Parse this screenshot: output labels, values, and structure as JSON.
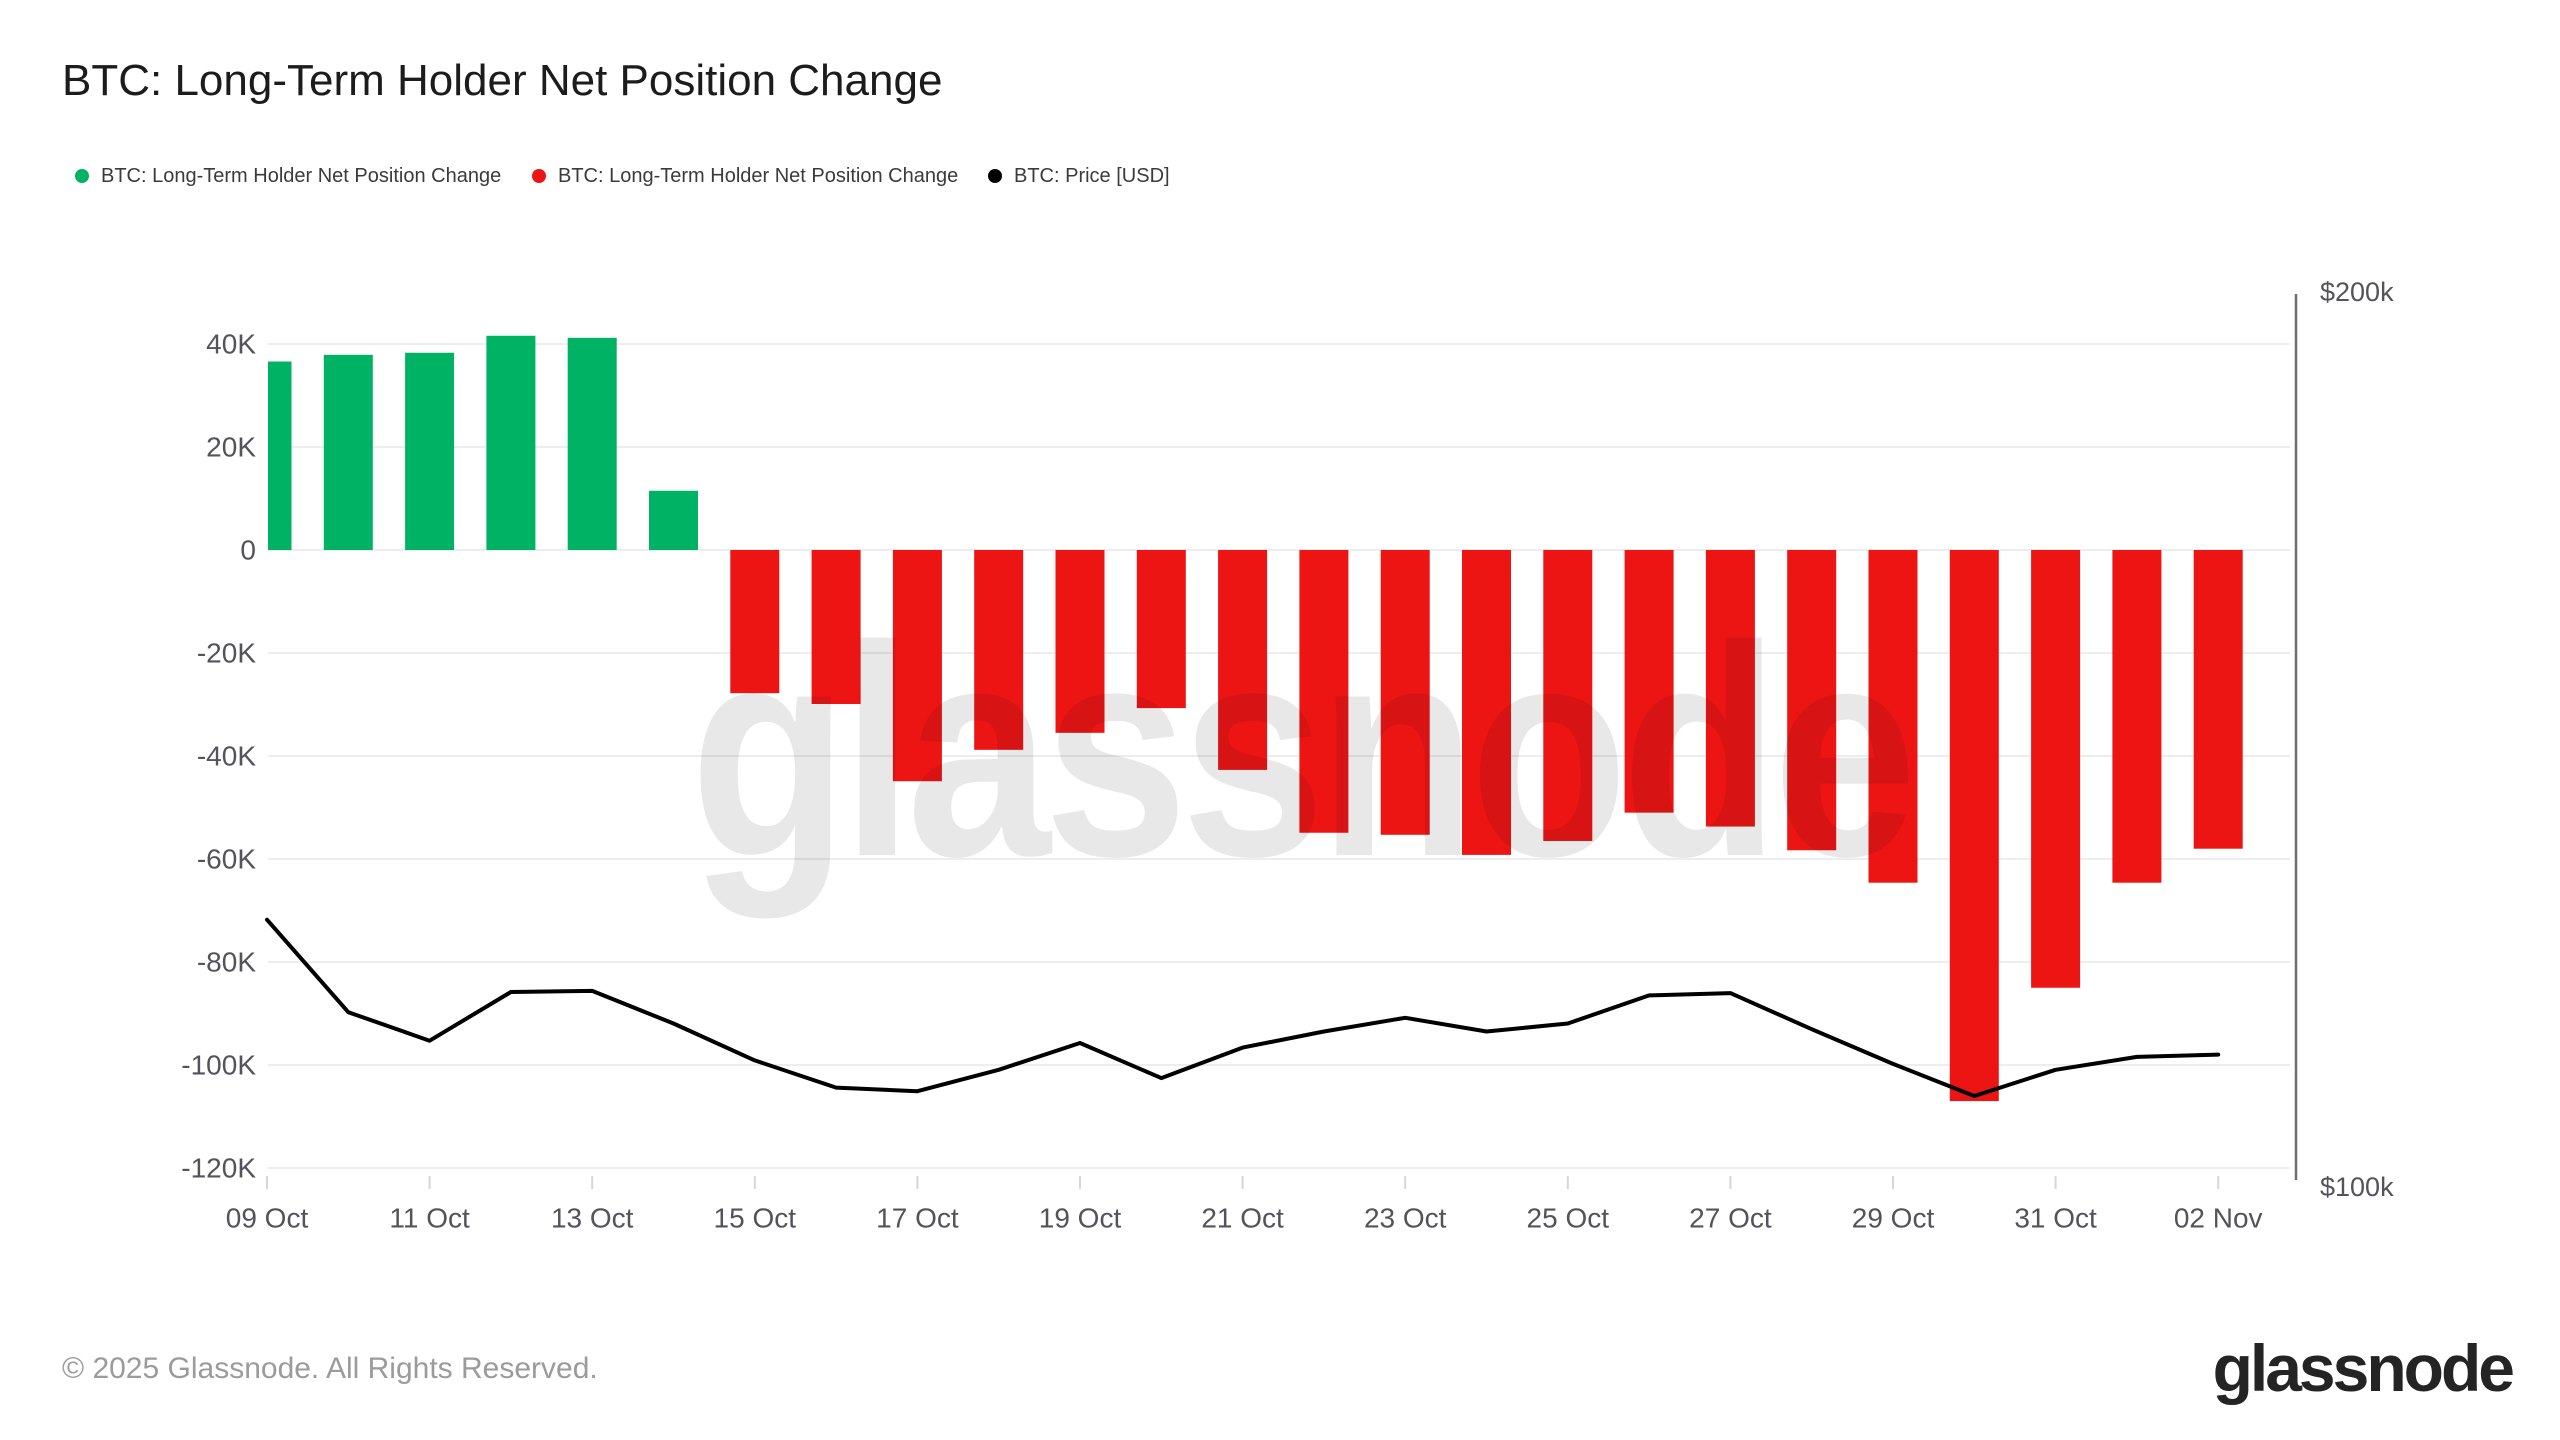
{
  "page": {
    "title": "BTC: Long-Term Holder Net Position Change",
    "footer": "© 2025 Glassnode. All Rights Reserved.",
    "brand": "glassnode",
    "watermark": "glassnode"
  },
  "legend": {
    "items": [
      {
        "label": "BTC: Long-Term Holder Net Position Change",
        "color": "#00b264"
      },
      {
        "label": "BTC: Long-Term Holder Net Position Change",
        "color": "#ed1414"
      },
      {
        "label": "BTC: Price [USD]",
        "color": "#000000"
      }
    ]
  },
  "chart_data": {
    "type": "bar+line",
    "title": "BTC: Long-Term Holder Net Position Change",
    "categories": [
      "09 Oct",
      "10 Oct",
      "11 Oct",
      "12 Oct",
      "13 Oct",
      "14 Oct",
      "15 Oct",
      "16 Oct",
      "17 Oct",
      "18 Oct",
      "19 Oct",
      "20 Oct",
      "21 Oct",
      "22 Oct",
      "23 Oct",
      "24 Oct",
      "25 Oct",
      "26 Oct",
      "27 Oct",
      "28 Oct",
      "29 Oct",
      "30 Oct",
      "31 Oct",
      "01 Nov",
      "02 Nov"
    ],
    "x_tick_labels": [
      "09 Oct",
      "11 Oct",
      "13 Oct",
      "15 Oct",
      "17 Oct",
      "19 Oct",
      "21 Oct",
      "23 Oct",
      "25 Oct",
      "27 Oct",
      "29 Oct",
      "31 Oct",
      "02 Nov"
    ],
    "series": [
      {
        "name": "BTC: Long-Term Holder Net Position Change",
        "type": "bar",
        "axis": "left",
        "positive_color": "#00b264",
        "negative_color": "#ed1414",
        "values": [
          36600,
          37900,
          38300,
          41600,
          41200,
          11500,
          -27800,
          -29900,
          -44900,
          -38800,
          -35500,
          -30700,
          -42700,
          -54900,
          -55300,
          -59200,
          -56500,
          -51000,
          -53700,
          -58300,
          -64600,
          -107000,
          -85000,
          -64600,
          -58000
        ]
      },
      {
        "name": "BTC: Price [USD]",
        "type": "line",
        "axis": "right",
        "color": "#000000",
        "values": [
          123000,
          114500,
          112000,
          116300,
          116400,
          113500,
          110300,
          108000,
          107700,
          109500,
          111800,
          108800,
          111400,
          112800,
          114000,
          112800,
          113500,
          116000,
          116200,
          113000,
          110000,
          107300,
          109500,
          110600,
          110800
        ]
      }
    ],
    "left_axis": {
      "tick_labels": [
        "40K",
        "20K",
        "0",
        "-20K",
        "-40K",
        "-60K",
        "-80K",
        "-100K",
        "-120K"
      ],
      "tick_values": [
        40000,
        20000,
        0,
        -20000,
        -40000,
        -60000,
        -80000,
        -100000,
        -120000
      ],
      "range": [
        -125000,
        45000
      ],
      "grid": true
    },
    "right_axis": {
      "labels": [
        {
          "text": "$200k",
          "value": 200000
        },
        {
          "text": "$100k",
          "value": 100000
        }
      ],
      "scale": "log",
      "range": [
        100000,
        200000
      ]
    },
    "legend_position": "top-left",
    "watermark": "glassnode"
  }
}
